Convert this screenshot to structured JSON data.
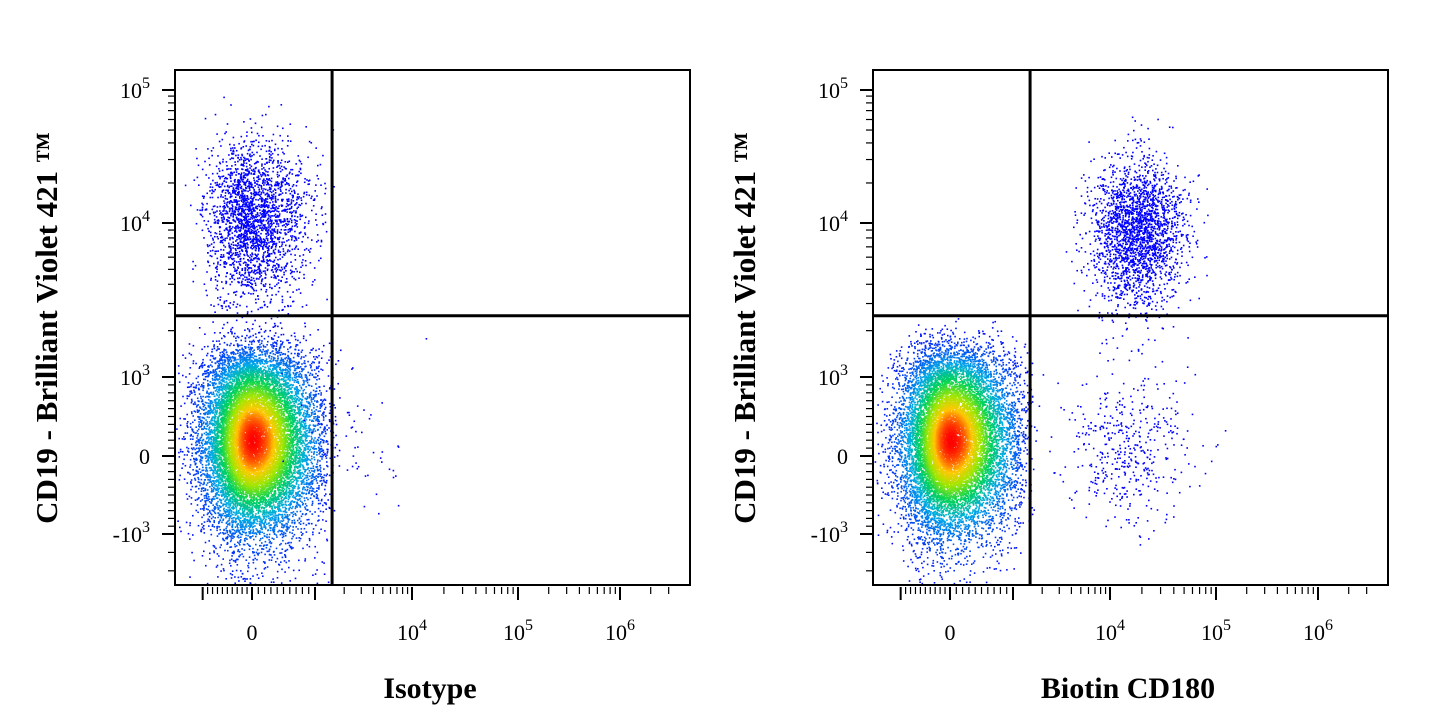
{
  "chart_data": [
    {
      "type": "scatter",
      "subtype": "flow-cytometry-density-dot-plot",
      "xlabel": "Isotype",
      "ylabel": "CD19 - Brilliant Violet 421 ™",
      "x_scale": "biexponential",
      "y_scale": "biexponential",
      "x_ticks": [
        {
          "value": 0,
          "label": "0",
          "exp": ""
        },
        {
          "value": 10000,
          "label": "10",
          "exp": "4"
        },
        {
          "value": 100000,
          "label": "10",
          "exp": "5"
        },
        {
          "value": 1000000,
          "label": "10",
          "exp": "6"
        }
      ],
      "y_ticks": [
        {
          "value": 100000,
          "label": "10",
          "exp": "5"
        },
        {
          "value": 10000,
          "label": "10",
          "exp": "4"
        },
        {
          "value": 1000,
          "label": "10",
          "exp": "3"
        },
        {
          "value": 0,
          "label": "0",
          "exp": ""
        },
        {
          "value": -1000,
          "label": "-10",
          "exp": "3"
        }
      ],
      "quadrant_gate": {
        "x": 1500,
        "y": 2500
      },
      "populations": [
        {
          "x_center": 0,
          "y_center": 200,
          "x_spread": 500,
          "y_spread": 600,
          "count": 14000,
          "kind": "dense"
        },
        {
          "x_center": 0,
          "y_center": 11000,
          "x_spread": 450,
          "y_spread": 0.28,
          "count": 2400,
          "kind": "sparse"
        },
        {
          "x_center": 2200,
          "y_center": 200,
          "x_spread": 0.25,
          "y_spread": 500,
          "count": 60,
          "kind": "sparse"
        }
      ],
      "grid": false,
      "legend": "none"
    },
    {
      "type": "scatter",
      "subtype": "flow-cytometry-density-dot-plot",
      "xlabel": "Biotin CD180",
      "ylabel": "CD19 - Brilliant Violet 421 ™",
      "x_scale": "biexponential",
      "y_scale": "biexponential",
      "x_ticks": [
        {
          "value": 0,
          "label": "0",
          "exp": ""
        },
        {
          "value": 10000,
          "label": "10",
          "exp": "4"
        },
        {
          "value": 100000,
          "label": "10",
          "exp": "5"
        },
        {
          "value": 1000000,
          "label": "10",
          "exp": "6"
        }
      ],
      "y_ticks": [
        {
          "value": 100000,
          "label": "10",
          "exp": "5"
        },
        {
          "value": 10000,
          "label": "10",
          "exp": "4"
        },
        {
          "value": 1000,
          "label": "10",
          "exp": "3"
        },
        {
          "value": 0,
          "label": "0",
          "exp": ""
        },
        {
          "value": -1000,
          "label": "-10",
          "exp": "3"
        }
      ],
      "quadrant_gate": {
        "x": 1500,
        "y": 2500
      },
      "populations": [
        {
          "x_center": 0,
          "y_center": 200,
          "x_spread": 500,
          "y_spread": 600,
          "count": 13000,
          "kind": "dense"
        },
        {
          "x_center": 18000,
          "y_center": 9000,
          "x_spread": 0.22,
          "y_spread": 0.25,
          "count": 2300,
          "kind": "sparse"
        },
        {
          "x_center": 15000,
          "y_center": 100,
          "x_spread": 0.3,
          "y_spread": 500,
          "count": 450,
          "kind": "sparse"
        }
      ],
      "grid": false,
      "legend": "none"
    }
  ]
}
